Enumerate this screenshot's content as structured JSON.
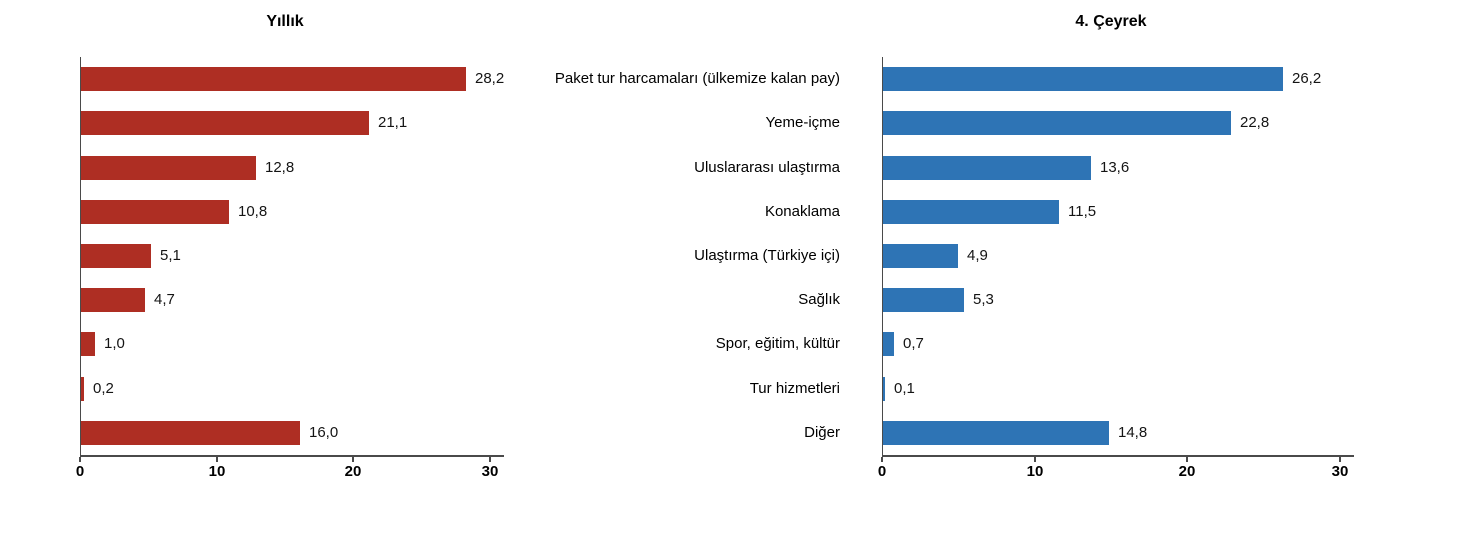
{
  "chart_data": {
    "type": "bar",
    "orientation": "horizontal",
    "layout": "two mirrored horizontal bar charts side by side with shared category labels centered between them, value labels at bar ends, no gridlines, no legend",
    "categories": [
      "Paket tur harcamaları (ülkemize kalan pay)",
      "Yeme-içme",
      "Uluslararası ulaştırma",
      "Konaklama",
      "Ulaştırma (Türkiye içi)",
      "Sağlık",
      "Spor, eğitim, kültür",
      "Tur hizmetleri",
      "Diğer"
    ],
    "series": [
      {
        "name": "Yıllık",
        "color": "#AE2E23",
        "values": [
          28.2,
          21.1,
          12.8,
          10.8,
          5.1,
          4.7,
          1.0,
          0.2,
          16.0
        ],
        "labels": [
          "28,2",
          "21,1",
          "12,8",
          "10,8",
          "5,1",
          "4,7",
          "1,0",
          "0,2",
          "16,0"
        ]
      },
      {
        "name": "4. Çeyrek",
        "color": "#2E74B5",
        "values": [
          26.2,
          22.8,
          13.6,
          11.5,
          4.9,
          5.3,
          0.7,
          0.1,
          14.8
        ],
        "labels": [
          "26,2",
          "22,8",
          "13,6",
          "11,5",
          "4,9",
          "5,3",
          "0,7",
          "0,1",
          "14,8"
        ]
      }
    ],
    "xlim": [
      0,
      30
    ],
    "xticks": [
      0,
      10,
      20,
      30
    ],
    "xtick_labels": [
      "0",
      "10",
      "20",
      "30"
    ],
    "grid": false,
    "legend": "none",
    "axis_color": "#4a4a4a",
    "background_color": "#ffffff"
  }
}
